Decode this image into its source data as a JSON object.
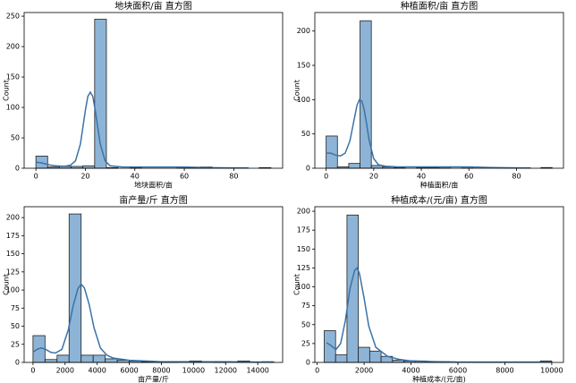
{
  "chart_data": [
    {
      "type": "histogram",
      "title": "地块面积/亩 直方图",
      "xlabel": "地块面积/亩",
      "ylabel": "Count",
      "bins": [
        0,
        4.75,
        9.5,
        14.25,
        19,
        23.75,
        28.5,
        33.25,
        38,
        42.75,
        47.5,
        52.25,
        57,
        61.75,
        66.5,
        71.25,
        76,
        80.75,
        85.5,
        90.25,
        95
      ],
      "values": [
        20,
        2,
        3,
        3,
        4,
        245,
        1,
        0,
        1,
        0,
        0,
        0,
        2,
        1,
        2,
        0,
        0,
        0,
        0,
        1
      ],
      "xlim": [
        -4.75,
        99.75
      ],
      "xticks": [
        0,
        20,
        40,
        60,
        80
      ],
      "ylim": [
        0,
        256
      ],
      "yticks": [
        0,
        50,
        100,
        150,
        200,
        250
      ],
      "color": "#8db4d6",
      "edge_color": "#222222",
      "kde_color": "#3a73a8",
      "kde_x": [
        0,
        2,
        4,
        6,
        8,
        10,
        12,
        14,
        16,
        18,
        20,
        21,
        22,
        23,
        24,
        26,
        28,
        30,
        35,
        40,
        50,
        60,
        70,
        80,
        86
      ],
      "kde_y": [
        10,
        9,
        7,
        5,
        4,
        3.5,
        3.5,
        5,
        12,
        40,
        95,
        118,
        125,
        118,
        95,
        40,
        12,
        4,
        2,
        2,
        2,
        2,
        1,
        0.5,
        0.5
      ]
    },
    {
      "type": "histogram",
      "title": "种植面积/亩 直方图",
      "xlabel": "种植面积/亩",
      "ylabel": "Count",
      "bins": [
        0,
        4.75,
        9.5,
        14.25,
        19,
        23.75,
        28.5,
        33.25,
        38,
        42.75,
        47.5,
        52.25,
        57,
        61.75,
        66.5,
        71.25,
        76,
        80.75,
        85.5,
        90.25,
        95
      ],
      "values": [
        47,
        2,
        7,
        215,
        4,
        2,
        1,
        0,
        1,
        1,
        2,
        0,
        2,
        0,
        0,
        0,
        0,
        0,
        0,
        1
      ],
      "xlim": [
        -4.75,
        99.75
      ],
      "xticks": [
        0,
        20,
        40,
        60,
        80
      ],
      "ylim": [
        0,
        227
      ],
      "yticks": [
        0,
        50,
        100,
        150,
        200
      ],
      "color": "#8db4d6",
      "edge_color": "#222222",
      "kde_color": "#3a73a8",
      "kde_x": [
        0,
        2,
        4,
        6,
        8,
        10,
        12,
        13,
        14,
        15,
        16,
        17,
        18,
        20,
        22,
        25,
        30,
        40,
        50,
        60,
        70,
        80,
        86
      ],
      "kde_y": [
        22,
        22,
        19,
        18,
        22,
        40,
        75,
        92,
        100,
        98,
        85,
        65,
        42,
        14,
        5,
        3,
        2,
        2,
        2,
        2,
        1,
        0.5,
        0.5
      ]
    },
    {
      "type": "histogram",
      "title": "亩产量/斤 直方图",
      "xlabel": "亩产量/斤",
      "ylabel": "Count",
      "bins": [
        0,
        750,
        1500,
        2250,
        3000,
        3750,
        4500,
        5250,
        6000,
        6750,
        7500,
        8250,
        9000,
        9750,
        10500,
        11250,
        12000,
        12750,
        13500,
        14250,
        15000
      ],
      "values": [
        37,
        4,
        10,
        205,
        10,
        10,
        5,
        3,
        2,
        1,
        1,
        1,
        0,
        2,
        0,
        1,
        0,
        2,
        0,
        1
      ],
      "xlim": [
        -550,
        15550
      ],
      "xticks": [
        0,
        2000,
        4000,
        6000,
        8000,
        10000,
        12000,
        14000
      ],
      "ylim": [
        0,
        215
      ],
      "yticks": [
        0,
        25,
        50,
        75,
        100,
        125,
        150,
        175,
        200
      ],
      "color": "#8db4d6",
      "edge_color": "#222222",
      "kde_color": "#3a73a8",
      "kde_x": [
        0,
        250,
        500,
        800,
        1100,
        1400,
        1800,
        2200,
        2500,
        2800,
        3000,
        3200,
        3500,
        3800,
        4200,
        4600,
        5000,
        6000,
        7000,
        8000,
        10000,
        12000,
        14000,
        15000
      ],
      "kde_y": [
        14,
        18,
        20,
        18,
        14,
        13,
        18,
        45,
        78,
        102,
        108,
        103,
        80,
        48,
        20,
        10,
        6,
        3,
        2,
        1,
        1,
        1,
        0.5,
        0.5
      ]
    },
    {
      "type": "histogram",
      "title": "种植成本/(元/亩) 直方图",
      "xlabel": "种植成本/(元/亩)",
      "ylabel": "Count",
      "bins": [
        300,
        785,
        1270,
        1755,
        2240,
        2725,
        3210,
        3695,
        4180,
        4665,
        5150,
        5635,
        6120,
        6605,
        7090,
        7575,
        8060,
        8545,
        9030,
        9515,
        10000
      ],
      "values": [
        42,
        10,
        195,
        20,
        15,
        8,
        3,
        2,
        2,
        1,
        1,
        0,
        0,
        0,
        0,
        0,
        0,
        0,
        0,
        2
      ],
      "xlim": [
        -100,
        10500
      ],
      "xticks": [
        0,
        2000,
        4000,
        6000,
        8000,
        10000
      ],
      "ylim": [
        0,
        206
      ],
      "yticks": [
        0,
        25,
        50,
        75,
        100,
        125,
        150,
        175,
        200
      ],
      "color": "#8db4d6",
      "edge_color": "#222222",
      "kde_color": "#3a73a8",
      "kde_x": [
        400,
        600,
        800,
        1000,
        1200,
        1400,
        1600,
        1700,
        1800,
        2000,
        2200,
        2500,
        3000,
        3500,
        4000,
        5000,
        6000,
        8000,
        10000
      ],
      "kde_y": [
        26,
        22,
        17,
        25,
        55,
        98,
        122,
        125,
        118,
        85,
        48,
        20,
        8,
        4,
        2,
        1,
        0.5,
        0.5,
        0.5
      ]
    }
  ]
}
